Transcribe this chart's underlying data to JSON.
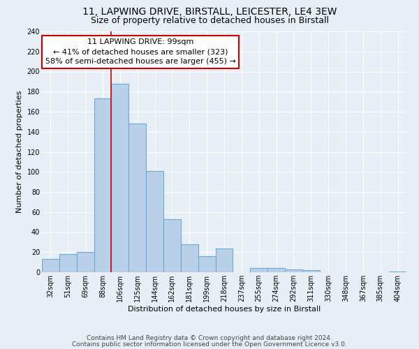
{
  "title1": "11, LAPWING DRIVE, BIRSTALL, LEICESTER, LE4 3EW",
  "title2": "Size of property relative to detached houses in Birstall",
  "xlabel": "Distribution of detached houses by size in Birstall",
  "ylabel": "Number of detached properties",
  "bar_labels": [
    "32sqm",
    "51sqm",
    "69sqm",
    "88sqm",
    "106sqm",
    "125sqm",
    "144sqm",
    "162sqm",
    "181sqm",
    "199sqm",
    "218sqm",
    "237sqm",
    "255sqm",
    "274sqm",
    "292sqm",
    "311sqm",
    "330sqm",
    "348sqm",
    "367sqm",
    "385sqm",
    "404sqm"
  ],
  "bar_values": [
    13,
    18,
    20,
    173,
    188,
    148,
    101,
    53,
    28,
    16,
    24,
    0,
    4,
    4,
    3,
    2,
    0,
    0,
    0,
    0,
    1
  ],
  "bar_color": "#b8d0e8",
  "bar_edge_color": "#6aaad4",
  "vline_color": "#cc0000",
  "vline_pos": 3.5,
  "ylim": [
    0,
    240
  ],
  "yticks": [
    0,
    20,
    40,
    60,
    80,
    100,
    120,
    140,
    160,
    180,
    200,
    220,
    240
  ],
  "annotation_title": "11 LAPWING DRIVE: 99sqm",
  "annotation_line1": "← 41% of detached houses are smaller (323)",
  "annotation_line2": "58% of semi-detached houses are larger (455) →",
  "annotation_box_facecolor": "#ffffff",
  "annotation_box_edgecolor": "#cc0000",
  "footer1": "Contains HM Land Registry data © Crown copyright and database right 2024.",
  "footer2": "Contains public sector information licensed under the Open Government Licence v3.0.",
  "bg_color": "#e8eef5",
  "grid_color": "#ffffff",
  "title_fontsize": 10,
  "subtitle_fontsize": 9,
  "tick_fontsize": 7,
  "ylabel_fontsize": 8,
  "xlabel_fontsize": 8,
  "footer_fontsize": 6.5,
  "ann_fontsize": 8
}
